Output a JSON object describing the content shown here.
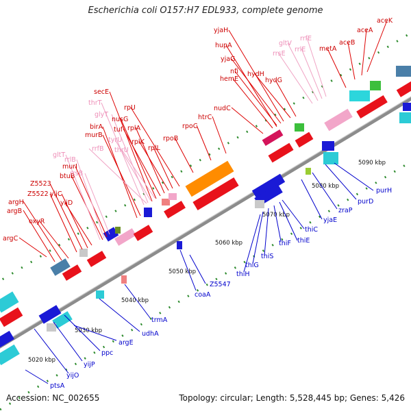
{
  "title": "Escherichia coli O157:H7 EDL933, complete genome",
  "footer": {
    "accession": "Accession: NC_002655",
    "stats": "Topology: circular; Length: 5,528,445 bp; Genes: 5,426"
  },
  "colors": {
    "forward_label": "#cc0000",
    "rna_label": "#ee8fb8",
    "reverse_label": "#0000cc",
    "forward_gene": "#e8121b",
    "reverse_gene": "#1a1ad6",
    "backbone": "#8c8c8c",
    "tick": "#2e8b2e"
  },
  "ticks": [
    "5020 kbp",
    "5030 kbp",
    "5040 kbp",
    "5050 kbp",
    "5060 kbp",
    "5070 kbp",
    "5080 kbp",
    "5090 kbp"
  ],
  "forward_labels": [
    "argC",
    "argB",
    "argH",
    "oxyR",
    "Z5522",
    "Z5523",
    "yijC",
    "yijD",
    "btuB",
    "murI",
    "birA",
    "murB",
    "secE",
    "thrT",
    "nusG",
    "tuf",
    "rplA",
    "rplK",
    "rplL",
    "rpU",
    "rpoB",
    "rpoC",
    "htrC",
    "nudC",
    "hemE",
    "nfi",
    "yjaG",
    "hupA",
    "yjaH",
    "hydH",
    "hydG",
    "metA",
    "aceB",
    "aceA",
    "aceK"
  ],
  "rna_labels": [
    "gltT",
    "rrlB",
    "rrsB",
    "rrfB",
    "glyT",
    "tyrU",
    "thrU",
    "gltV",
    "rrfE",
    "rrlE",
    "rrsE"
  ],
  "reverse_labels": [
    "ptsA",
    "yijO",
    "yijP",
    "ppc",
    "argE",
    "udhA",
    "trmA",
    "coaA",
    "Z5547",
    "thiH",
    "thiG",
    "thiS",
    "thiF",
    "thiE",
    "thiC",
    "yjaE",
    "zraP",
    "purD",
    "purH"
  ]
}
